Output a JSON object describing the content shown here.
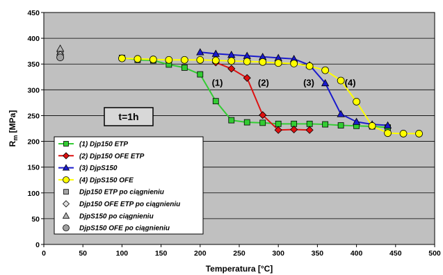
{
  "chart_data": {
    "type": "line",
    "xlabel": "Temperatura [°C]",
    "ylabel_main": "R",
    "ylabel_sub": "m",
    "ylabel_unit": " [MPa]",
    "xlim": [
      0,
      500
    ],
    "ylim": [
      0,
      450
    ],
    "xticks": [
      0,
      50,
      100,
      150,
      200,
      250,
      300,
      350,
      400,
      450,
      500
    ],
    "yticks": [
      0,
      50,
      100,
      150,
      200,
      250,
      300,
      350,
      400,
      450
    ],
    "grid": true,
    "plot_background": "#c0c0c0",
    "time_box": "t=1h",
    "annotations": [
      {
        "text": "(1)",
        "x": 222,
        "y": 308
      },
      {
        "text": "(2)",
        "x": 281,
        "y": 308
      },
      {
        "text": "(3)",
        "x": 339,
        "y": 308
      },
      {
        "text": "(4)",
        "x": 392,
        "y": 308
      }
    ],
    "series": [
      {
        "name": "(1)  Djp150 ETP",
        "color": "#33cc33",
        "marker": "square",
        "x": [
          100,
          120,
          140,
          160,
          180,
          200,
          220,
          240,
          260,
          280,
          300,
          320,
          340,
          360,
          380,
          400,
          420,
          440
        ],
        "y": [
          362,
          358,
          357,
          349,
          343,
          330,
          278,
          241,
          237,
          236,
          234,
          234,
          234,
          233,
          231,
          230,
          229,
          227
        ]
      },
      {
        "name": "(2)  Djp150 OFE ETP",
        "color": "#dd1111",
        "marker": "diamond",
        "x": [
          220,
          240,
          260,
          280,
          300,
          320,
          340
        ],
        "y": [
          353,
          341,
          323,
          251,
          222,
          223,
          222
        ]
      },
      {
        "name": "(3)  DjpS150",
        "color": "#1a1acc",
        "marker": "triangle",
        "x": [
          200,
          220,
          240,
          260,
          280,
          300,
          320,
          340,
          360,
          380,
          400,
          420,
          440
        ],
        "y": [
          373,
          370,
          368,
          366,
          364,
          362,
          360,
          348,
          313,
          253,
          238,
          233,
          231
        ]
      },
      {
        "name": "(4)  DjpS150 OFE",
        "color": "#ffff00",
        "marker": "circle",
        "x": [
          100,
          120,
          140,
          160,
          180,
          200,
          220,
          240,
          260,
          280,
          300,
          320,
          340,
          360,
          380,
          400,
          420,
          440,
          460,
          480
        ],
        "y": [
          361,
          360,
          359,
          358,
          358,
          358,
          357,
          356,
          355,
          354,
          352,
          351,
          346,
          338,
          318,
          277,
          230,
          216,
          215,
          215
        ]
      }
    ],
    "reference_series": [
      {
        "name": "Djp150 ETP po ciągnieniu",
        "color": "#a6a6a6",
        "marker": "square",
        "x": [
          21
        ],
        "y": [
          372
        ]
      },
      {
        "name": "Djp150 OFE ETP po ciągnieniu",
        "color": "#e0e0e0",
        "marker": "diamond",
        "x": [
          21
        ],
        "y": [
          368
        ]
      },
      {
        "name": "DjpS150 po ciągnieniu",
        "color": "#b4b4b4",
        "marker": "triangle",
        "x": [
          21
        ],
        "y": [
          380
        ]
      },
      {
        "name": "DjpS150 OFE po ciągnieniu",
        "color": "#a0a0a0",
        "marker": "circle",
        "x": [
          21
        ],
        "y": [
          363
        ]
      }
    ]
  }
}
